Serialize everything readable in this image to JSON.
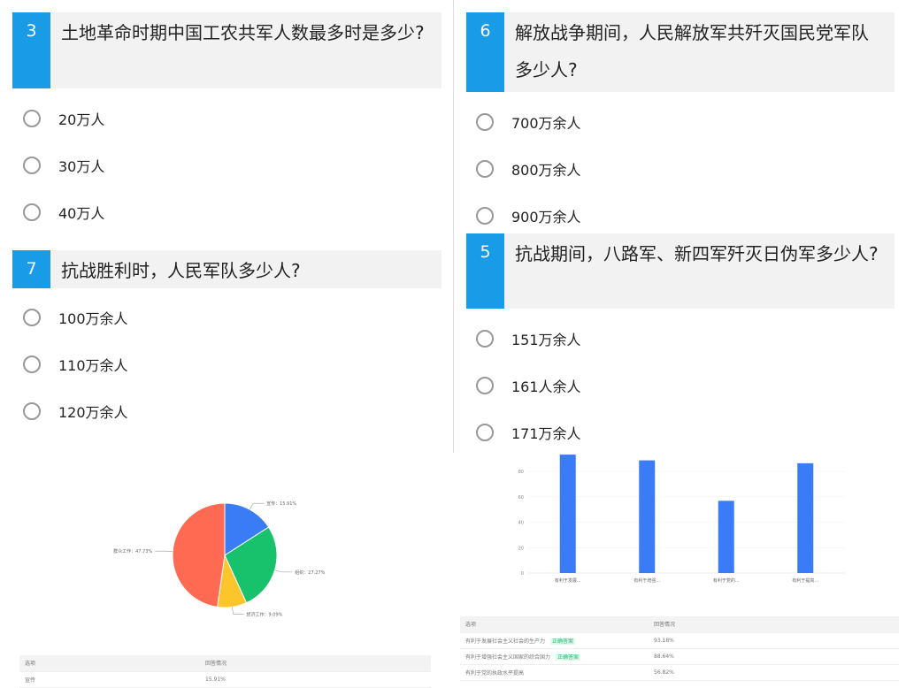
{
  "left_questions": [
    {
      "num": "3",
      "text": "土地革命时期中国工农共军人数最多时是多少?",
      "options": [
        "20万人",
        "30万人",
        "40万人"
      ]
    },
    {
      "num": "7",
      "text": "抗战胜利时，人民军队多少人?",
      "options": [
        "100万余人",
        "110万余人",
        "120万余人"
      ]
    }
  ],
  "right_questions": [
    {
      "num": "6",
      "text": "解放战争期间，人民解放军共歼灭国民党军队多少人?",
      "options": [
        "700万余人",
        "800万余人",
        "900万余人"
      ]
    },
    {
      "num": "5",
      "text": "抗战期间，八路军、新四军歼灭日伪军多少人?",
      "options": [
        "151万余人",
        "161人余人",
        "171万余人"
      ]
    }
  ],
  "chart_data": [
    {
      "type": "pie",
      "slices": [
        {
          "label": "宣传：15.91%",
          "name": "宣传",
          "value": 15.91,
          "color": "#3a7cf6"
        },
        {
          "label": "组织：27.27%",
          "name": "组织",
          "value": 27.27,
          "color": "#18c16b"
        },
        {
          "label": "经济工作：9.09%",
          "name": "经济工作",
          "value": 9.09,
          "color": "#fcc52b"
        },
        {
          "label": "群众工作：47.73%",
          "name": "群众工作",
          "value": 47.73,
          "color": "#ff6b52"
        }
      ]
    },
    {
      "type": "bar",
      "categories": [
        "有利于发展...",
        "有利于增强...",
        "有利于党的...",
        "有利于提高..."
      ],
      "values": [
        93.18,
        88.64,
        56.82,
        86.36
      ],
      "yticks": [
        0,
        20,
        40,
        60,
        80
      ],
      "color": "#3a7cf6",
      "grid": true
    }
  ],
  "left_table": {
    "headers": [
      "选项",
      "回答情况"
    ],
    "rows": [
      [
        "宣传",
        "15.91%"
      ]
    ]
  },
  "right_table": {
    "headers": [
      "选项",
      "回答情况"
    ],
    "rows": [
      {
        "option": "有利于发展社会主义社会的生产力",
        "tag": "正确答案",
        "value": "93.18%"
      },
      {
        "option": "有利于增强社会主义国家的综合国力",
        "tag": "正确答案",
        "value": "88.64%"
      },
      {
        "option": "有利于党的执政水平提高",
        "tag": "",
        "value": "56.82%"
      }
    ]
  }
}
